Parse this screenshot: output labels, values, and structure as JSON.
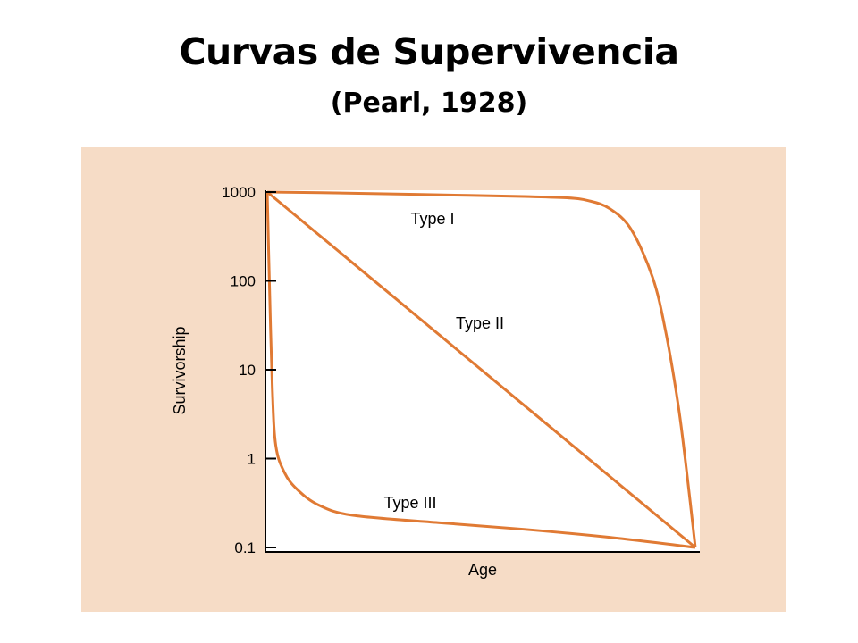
{
  "slide": {
    "title": "Curvas de Supervivencia",
    "subtitle": "(Pearl, 1928)"
  },
  "colors": {
    "panel_background": "#f6dcc6",
    "plot_background": "#ffffff",
    "curve": "#e07a34",
    "axis": "#000000"
  },
  "chart_data": {
    "type": "line",
    "title": "",
    "xlabel": "Age",
    "ylabel": "Survivorship",
    "yscale": "log",
    "ylim": [
      0.1,
      1000
    ],
    "xlim": [
      0,
      1
    ],
    "yticks": [
      0.1,
      1,
      10,
      100,
      1000
    ],
    "ytick_labels": [
      "0.1",
      "1",
      "10",
      "100",
      "1000"
    ],
    "xticks": [],
    "grid": false,
    "legend": "none",
    "series": [
      {
        "name": "Type I",
        "points": [
          [
            0.0,
            1000
          ],
          [
            0.2,
            970
          ],
          [
            0.4,
            930
          ],
          [
            0.6,
            890
          ],
          [
            0.7,
            860
          ],
          [
            0.75,
            800
          ],
          [
            0.8,
            650
          ],
          [
            0.85,
            380
          ],
          [
            0.9,
            110
          ],
          [
            0.93,
            28
          ],
          [
            0.96,
            4
          ],
          [
            0.98,
            0.7
          ],
          [
            1.0,
            0.1
          ]
        ]
      },
      {
        "name": "Type II",
        "points": [
          [
            0.0,
            1000
          ],
          [
            1.0,
            0.1
          ]
        ]
      },
      {
        "name": "Type III",
        "points": [
          [
            0.0,
            1000
          ],
          [
            0.005,
            100
          ],
          [
            0.012,
            6
          ],
          [
            0.02,
            1.4
          ],
          [
            0.04,
            0.7
          ],
          [
            0.07,
            0.45
          ],
          [
            0.12,
            0.3
          ],
          [
            0.2,
            0.23
          ],
          [
            0.4,
            0.19
          ],
          [
            0.6,
            0.16
          ],
          [
            0.8,
            0.13
          ],
          [
            1.0,
            0.1
          ]
        ]
      }
    ]
  }
}
